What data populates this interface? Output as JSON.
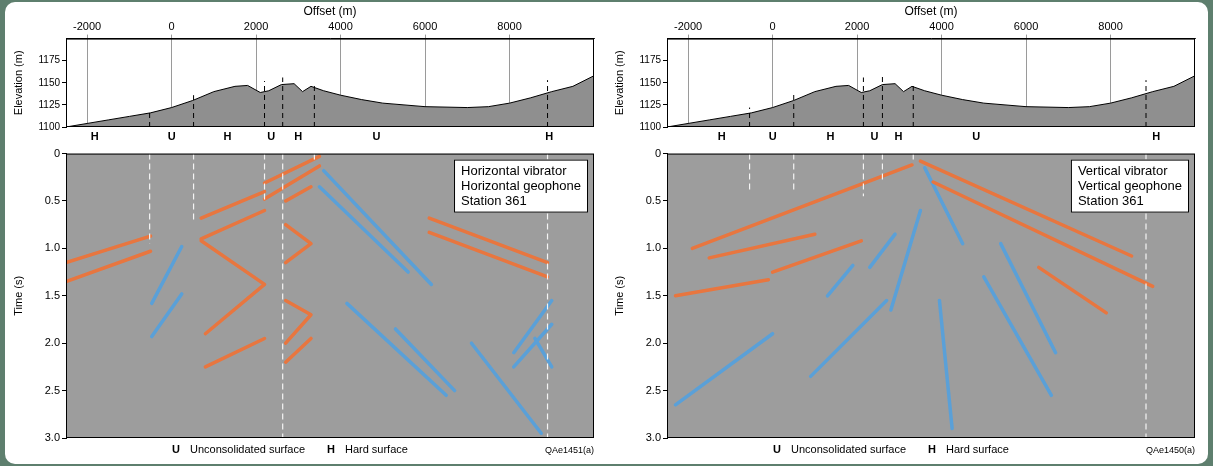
{
  "chart_data": [
    {
      "type": "area",
      "x_label": "Offset (m)",
      "y_label": "Elevation (m)",
      "color": "#8f8f8f",
      "grid": true,
      "xlim": [
        -2500,
        10000
      ],
      "xticks": [
        -2000,
        0,
        2000,
        4000,
        6000,
        8000
      ],
      "ylim": [
        1100,
        1200
      ],
      "yticks": [
        1100,
        1125,
        1150,
        1175
      ],
      "x": [
        -2500,
        -2000,
        -1500,
        -1000,
        -500,
        0,
        500,
        1000,
        1500,
        1800,
        2100,
        2300,
        2600,
        2900,
        3100,
        3300,
        3600,
        4000,
        4500,
        5000,
        6000,
        7000,
        7500,
        8000,
        8500,
        9000,
        9500,
        10000
      ],
      "values": [
        1100,
        1104,
        1108,
        1112,
        1116,
        1122,
        1130,
        1140,
        1146,
        1147,
        1139,
        1141,
        1148,
        1149,
        1140,
        1146,
        1141,
        1136,
        1131,
        1127,
        1123,
        1122,
        1123,
        1127,
        1133,
        1140,
        1146,
        1158
      ],
      "boundaries": [
        {
          "x": -520,
          "top": 1119
        },
        {
          "x": 520,
          "top": 1136
        },
        {
          "x": 2200,
          "top": 1152
        },
        {
          "x": 2630,
          "top": 1156
        },
        {
          "x": 3380,
          "top": 1149
        },
        {
          "x": 8900,
          "top": 1153
        }
      ],
      "surface_labels": [
        {
          "x": -1820,
          "label": "H"
        },
        {
          "x": 0,
          "label": "U"
        },
        {
          "x": 1320,
          "label": "H"
        },
        {
          "x": 2360,
          "label": "U"
        },
        {
          "x": 3000,
          "label": "H"
        },
        {
          "x": 4850,
          "label": "U"
        },
        {
          "x": 8940,
          "label": "H"
        }
      ]
    },
    {
      "type": "line",
      "y_label": "Time (s)",
      "grid": false,
      "tick_labels": "y",
      "xlim": [
        -2500,
        10000
      ],
      "ylim": [
        0,
        3
      ],
      "yticks": [
        0,
        {
          "value": 0.5,
          "label": "0.5"
        },
        {
          "value": 1,
          "label": "1.0"
        },
        {
          "value": 1.5,
          "label": "1.5"
        },
        {
          "value": 2,
          "label": "2.0"
        },
        {
          "value": 2.5,
          "label": "2.5"
        },
        {
          "value": 3,
          "label": "3.0"
        }
      ],
      "annotation": [
        "Horizontal vibrator",
        "Horizontal geophone",
        "Station 361"
      ],
      "boundaries": [
        {
          "x": -520,
          "bottom": 0.95
        },
        {
          "x": 520,
          "bottom": 0.72
        },
        {
          "x": 2200,
          "bottom": 0.5
        },
        {
          "x": 2630,
          "bottom": 3
        },
        {
          "x": 3380,
          "bottom": 0.1
        },
        {
          "x": 8900,
          "bottom": 3
        }
      ],
      "series": [
        {
          "color": "#e8763f",
          "x": [
            -2500,
            -500
          ],
          "values": [
            1.15,
            0.87
          ]
        },
        {
          "color": "#e8763f",
          "x": [
            -2500,
            -500
          ],
          "values": [
            1.35,
            1.03
          ]
        },
        {
          "color": "#e8763f",
          "x": [
            700,
            2200
          ],
          "values": [
            0.68,
            0.4
          ]
        },
        {
          "color": "#e8763f",
          "x": [
            700,
            2200
          ],
          "values": [
            0.9,
            0.6
          ]
        },
        {
          "color": "#e8763f",
          "x": [
            700,
            2200,
            800
          ],
          "values": [
            0.92,
            1.38,
            1.9
          ]
        },
        {
          "color": "#e8763f",
          "x": [
            800,
            2200
          ],
          "values": [
            2.25,
            1.95
          ]
        },
        {
          "color": "#e8763f",
          "x": [
            2200,
            3500
          ],
          "values": [
            0.31,
            0.03
          ]
        },
        {
          "color": "#e8763f",
          "x": [
            2200,
            3500
          ],
          "values": [
            0.48,
            0.13
          ]
        },
        {
          "color": "#e8763f",
          "x": [
            2700,
            3300
          ],
          "values": [
            0.5,
            0.35
          ]
        },
        {
          "color": "#e8763f",
          "x": [
            2700,
            3300,
            2700
          ],
          "values": [
            0.75,
            0.95,
            1.15
          ]
        },
        {
          "color": "#e8763f",
          "x": [
            2700,
            3300,
            2700
          ],
          "values": [
            1.55,
            1.7,
            2.0
          ]
        },
        {
          "color": "#e8763f",
          "x": [
            2700,
            3300
          ],
          "values": [
            2.2,
            1.95
          ]
        },
        {
          "color": "#e8763f",
          "x": [
            6100,
            8900
          ],
          "values": [
            0.68,
            1.15
          ]
        },
        {
          "color": "#e8763f",
          "x": [
            6100,
            8900
          ],
          "values": [
            0.83,
            1.3
          ]
        },
        {
          "color": "#5aa0d8",
          "x": [
            -470,
            240
          ],
          "values": [
            1.58,
            0.98
          ]
        },
        {
          "color": "#5aa0d8",
          "x": [
            -470,
            240
          ],
          "values": [
            1.93,
            1.48
          ]
        },
        {
          "color": "#5aa0d8",
          "x": [
            3600,
            6150
          ],
          "values": [
            0.18,
            1.38
          ]
        },
        {
          "color": "#5aa0d8",
          "x": [
            3500,
            5600
          ],
          "values": [
            0.35,
            1.25
          ]
        },
        {
          "color": "#5aa0d8",
          "x": [
            4150,
            6500
          ],
          "values": [
            1.58,
            2.55
          ]
        },
        {
          "color": "#5aa0d8",
          "x": [
            5300,
            6700
          ],
          "values": [
            1.85,
            2.5
          ]
        },
        {
          "color": "#5aa0d8",
          "x": [
            7100,
            8750
          ],
          "values": [
            2.0,
            2.95
          ]
        },
        {
          "color": "#5aa0d8",
          "x": [
            9000,
            8100
          ],
          "values": [
            1.55,
            2.1
          ]
        },
        {
          "color": "#5aa0d8",
          "x": [
            9000,
            8100
          ],
          "values": [
            1.8,
            2.25
          ]
        },
        {
          "color": "#5aa0d8",
          "x": [
            8600,
            9000
          ],
          "values": [
            1.95,
            2.25
          ]
        }
      ],
      "surface_key": [
        {
          "symbol": "U",
          "label": "Unconsolidated surface"
        },
        {
          "symbol": "H",
          "label": "Hard surface"
        }
      ],
      "figure_id": "QAe1451(a)"
    },
    {
      "type": "area",
      "x_label": "Offset (m)",
      "y_label": "Elevation (m)",
      "color": "#8f8f8f",
      "grid": true,
      "xlim": [
        -2500,
        10000
      ],
      "xticks": [
        -2000,
        0,
        2000,
        4000,
        6000,
        8000
      ],
      "ylim": [
        1100,
        1200
      ],
      "yticks": [
        1100,
        1125,
        1150,
        1175
      ],
      "x": [
        -2500,
        -2000,
        -1500,
        -1000,
        -500,
        0,
        500,
        1000,
        1500,
        1800,
        2100,
        2300,
        2600,
        2900,
        3100,
        3300,
        3600,
        4000,
        4500,
        5000,
        6000,
        7000,
        7500,
        8000,
        8500,
        9000,
        9500,
        10000
      ],
      "values": [
        1100,
        1104,
        1108,
        1112,
        1116,
        1122,
        1130,
        1140,
        1146,
        1147,
        1139,
        1141,
        1148,
        1149,
        1140,
        1146,
        1141,
        1136,
        1131,
        1127,
        1123,
        1122,
        1123,
        1127,
        1133,
        1140,
        1146,
        1158
      ],
      "boundaries": [
        {
          "x": -545,
          "top": 1122
        },
        {
          "x": 500,
          "top": 1140
        },
        {
          "x": 2150,
          "top": 1156
        },
        {
          "x": 2600,
          "top": 1160
        },
        {
          "x": 3330,
          "top": 1149
        },
        {
          "x": 8840,
          "top": 1153
        }
      ],
      "surface_labels": [
        {
          "x": -1205,
          "label": "H"
        },
        {
          "x": 0,
          "label": "U"
        },
        {
          "x": 1370,
          "label": "H"
        },
        {
          "x": 2410,
          "label": "U"
        },
        {
          "x": 2980,
          "label": "H"
        },
        {
          "x": 4820,
          "label": "U"
        },
        {
          "x": 9080,
          "label": "H"
        }
      ]
    },
    {
      "type": "line",
      "y_label": "Time (s)",
      "grid": false,
      "tick_labels": "y",
      "xlim": [
        -2500,
        10000
      ],
      "ylim": [
        0,
        3
      ],
      "yticks": [
        0,
        {
          "value": 0.5,
          "label": "0.5"
        },
        {
          "value": 1,
          "label": "1.0"
        },
        {
          "value": 1.5,
          "label": "1.5"
        },
        {
          "value": 2,
          "label": "2.0"
        },
        {
          "value": 2.5,
          "label": "2.5"
        },
        {
          "value": 3,
          "label": "3.0"
        }
      ],
      "annotation": [
        "Vertical vibrator",
        "Vertical geophone",
        "Station 361"
      ],
      "boundaries": [
        {
          "x": -545,
          "bottom": 0.42
        },
        {
          "x": 500,
          "bottom": 0.42
        },
        {
          "x": 2150,
          "bottom": 0.45
        },
        {
          "x": 2600,
          "bottom": 0.3
        },
        {
          "x": 3330,
          "bottom": 0.1
        },
        {
          "x": 8840,
          "bottom": 3
        }
      ],
      "series": [
        {
          "color": "#e8763f",
          "x": [
            -1900,
            3300
          ],
          "values": [
            1.0,
            0.12
          ]
        },
        {
          "color": "#e8763f",
          "x": [
            -1500,
            1000
          ],
          "values": [
            1.1,
            0.85
          ]
        },
        {
          "color": "#e8763f",
          "x": [
            -2300,
            -100
          ],
          "values": [
            1.5,
            1.33
          ]
        },
        {
          "color": "#e8763f",
          "x": [
            0,
            2100
          ],
          "values": [
            1.25,
            0.92
          ]
        },
        {
          "color": "#e8763f",
          "x": [
            3500,
            8500
          ],
          "values": [
            0.08,
            1.08
          ]
        },
        {
          "color": "#e8763f",
          "x": [
            3800,
            9000
          ],
          "values": [
            0.3,
            1.4
          ]
        },
        {
          "color": "#e8763f",
          "x": [
            6300,
            7900
          ],
          "values": [
            1.2,
            1.68
          ]
        },
        {
          "color": "#5aa0d8",
          "x": [
            -2300,
            0
          ],
          "values": [
            2.65,
            1.9
          ]
        },
        {
          "color": "#5aa0d8",
          "x": [
            900,
            2700
          ],
          "values": [
            2.35,
            1.55
          ]
        },
        {
          "color": "#5aa0d8",
          "x": [
            1300,
            1900
          ],
          "values": [
            1.5,
            1.18
          ]
        },
        {
          "color": "#5aa0d8",
          "x": [
            2300,
            2900
          ],
          "values": [
            1.2,
            0.85
          ]
        },
        {
          "color": "#5aa0d8",
          "x": [
            2800,
            3500
          ],
          "values": [
            1.65,
            0.6
          ]
        },
        {
          "color": "#5aa0d8",
          "x": [
            3600,
            4500
          ],
          "values": [
            0.15,
            0.95
          ]
        },
        {
          "color": "#5aa0d8",
          "x": [
            3950,
            4250
          ],
          "values": [
            1.55,
            2.9
          ]
        },
        {
          "color": "#5aa0d8",
          "x": [
            5000,
            6600
          ],
          "values": [
            1.3,
            2.55
          ]
        },
        {
          "color": "#5aa0d8",
          "x": [
            5400,
            6700
          ],
          "values": [
            0.95,
            2.1
          ]
        }
      ],
      "surface_key": [
        {
          "symbol": "U",
          "label": "Unconsolidated surface"
        },
        {
          "symbol": "H",
          "label": "Hard surface"
        }
      ],
      "figure_id": "QAe1450(a)"
    }
  ]
}
